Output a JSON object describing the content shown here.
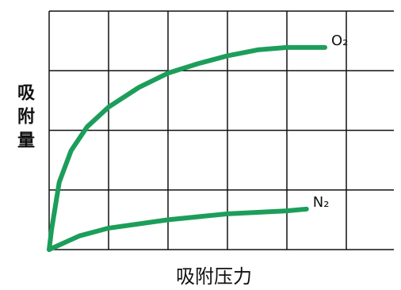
{
  "chart_data": {
    "type": "line",
    "xlabel": "吸附压力",
    "ylabel": "吸附量",
    "xlim": [
      0,
      5.8
    ],
    "ylim": [
      0,
      4
    ],
    "xticks": [
      0,
      1,
      2,
      3,
      4,
      5
    ],
    "yticks": [
      0,
      1,
      2,
      3,
      4
    ],
    "grid": true,
    "series": [
      {
        "name": "O₂",
        "color": "#1c9e5a",
        "x": [
          0,
          0.04,
          0.17,
          0.37,
          0.64,
          1,
          1.51,
          2,
          2.51,
          3,
          3.51,
          4,
          4.64
        ],
        "values": [
          0,
          0.33,
          1.13,
          1.66,
          2.06,
          2.39,
          2.72,
          2.96,
          3.12,
          3.25,
          3.35,
          3.39,
          3.39
        ]
      },
      {
        "name": "N₂",
        "color": "#1c9e5a",
        "x": [
          0,
          0.51,
          1,
          2,
          3,
          4,
          4.33
        ],
        "values": [
          0,
          0.23,
          0.36,
          0.5,
          0.6,
          0.65,
          0.68
        ]
      }
    ]
  }
}
